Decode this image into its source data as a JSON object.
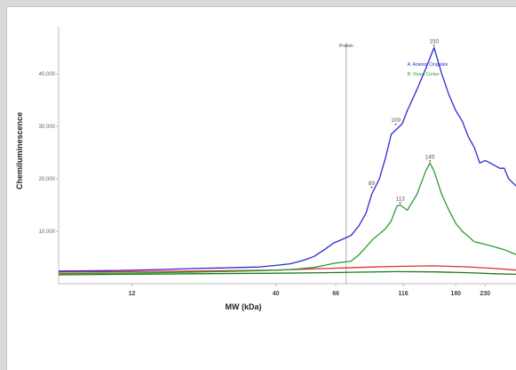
{
  "chart_data": {
    "type": "line",
    "xlabel": "MW (kDa)",
    "ylabel": "Chemiluminescence",
    "x_scale": "log",
    "x_ticks": [
      {
        "value": 12,
        "label": "12"
      },
      {
        "value": 40,
        "label": "40"
      },
      {
        "value": 66,
        "label": "66"
      },
      {
        "value": 116,
        "label": "116"
      },
      {
        "value": 180,
        "label": "180"
      },
      {
        "value": 230,
        "label": "230"
      }
    ],
    "y_ticks": [
      {
        "value": 10000,
        "label": "10,000"
      },
      {
        "value": 20000,
        "label": "20,000"
      },
      {
        "value": 30000,
        "label": "30,000"
      },
      {
        "value": 40000,
        "label": "40,000"
      }
    ],
    "xlim": [
      6.5,
      300
    ],
    "ylim": [
      0,
      49000
    ],
    "reference_line": {
      "x": 72,
      "label": "Protein"
    },
    "series": [
      {
        "name": "Anterior Cingulate",
        "color": "#2a2ad0",
        "points": [
          [
            6.5,
            2400
          ],
          [
            10,
            2500
          ],
          [
            15,
            2700
          ],
          [
            20,
            2900
          ],
          [
            25,
            3000
          ],
          [
            30,
            3100
          ],
          [
            35,
            3200
          ],
          [
            40,
            3500
          ],
          [
            45,
            3800
          ],
          [
            50,
            4400
          ],
          [
            55,
            5200
          ],
          [
            60,
            6500
          ],
          [
            65,
            7800
          ],
          [
            70,
            8500
          ],
          [
            75,
            9200
          ],
          [
            80,
            11000
          ],
          [
            85,
            13500
          ],
          [
            89,
            17000
          ],
          [
            95,
            20000
          ],
          [
            100,
            24000
          ],
          [
            105,
            28500
          ],
          [
            110,
            29500
          ],
          [
            115,
            30500
          ],
          [
            120,
            33000
          ],
          [
            130,
            37000
          ],
          [
            140,
            41000
          ],
          [
            150,
            45000
          ],
          [
            160,
            40000
          ],
          [
            170,
            36000
          ],
          [
            180,
            33000
          ],
          [
            190,
            31000
          ],
          [
            200,
            28000
          ],
          [
            210,
            26000
          ],
          [
            220,
            23000
          ],
          [
            230,
            23500
          ],
          [
            240,
            23000
          ],
          [
            250,
            22500
          ],
          [
            260,
            22000
          ],
          [
            270,
            22000
          ],
          [
            280,
            20000
          ],
          [
            300,
            18500
          ]
        ]
      },
      {
        "name": "Visual Cortex",
        "color": "#2e9a2e",
        "points": [
          [
            6.5,
            1900
          ],
          [
            10,
            2000
          ],
          [
            15,
            2100
          ],
          [
            20,
            2200
          ],
          [
            25,
            2300
          ],
          [
            30,
            2400
          ],
          [
            35,
            2500
          ],
          [
            40,
            2600
          ],
          [
            45,
            2700
          ],
          [
            50,
            2900
          ],
          [
            55,
            3100
          ],
          [
            60,
            3500
          ],
          [
            65,
            3900
          ],
          [
            70,
            4100
          ],
          [
            75,
            4300
          ],
          [
            80,
            5500
          ],
          [
            85,
            7000
          ],
          [
            90,
            8500
          ],
          [
            95,
            9500
          ],
          [
            100,
            10500
          ],
          [
            105,
            12000
          ],
          [
            110,
            14800
          ],
          [
            113,
            15000
          ],
          [
            120,
            14000
          ],
          [
            130,
            17000
          ],
          [
            140,
            21500
          ],
          [
            145,
            23000
          ],
          [
            150,
            21500
          ],
          [
            160,
            17000
          ],
          [
            170,
            14000
          ],
          [
            180,
            11500
          ],
          [
            190,
            10000
          ],
          [
            200,
            9000
          ],
          [
            210,
            8000
          ],
          [
            230,
            7500
          ],
          [
            250,
            7000
          ],
          [
            270,
            6500
          ],
          [
            300,
            5500
          ]
        ]
      },
      {
        "name": "",
        "color": "#e03030",
        "points": [
          [
            6.5,
            2200
          ],
          [
            20,
            2400
          ],
          [
            40,
            2600
          ],
          [
            60,
            2900
          ],
          [
            80,
            3100
          ],
          [
            110,
            3300
          ],
          [
            150,
            3400
          ],
          [
            200,
            3200
          ],
          [
            250,
            2900
          ],
          [
            300,
            2600
          ]
        ]
      },
      {
        "name": "",
        "color": "#1e7a1e",
        "points": [
          [
            6.5,
            1700
          ],
          [
            20,
            1900
          ],
          [
            40,
            2000
          ],
          [
            60,
            2100
          ],
          [
            80,
            2200
          ],
          [
            110,
            2300
          ],
          [
            150,
            2250
          ],
          [
            200,
            2100
          ],
          [
            250,
            1900
          ],
          [
            300,
            1800
          ]
        ]
      }
    ],
    "peak_labels": [
      {
        "x": 150,
        "y": 45000,
        "text": "150"
      },
      {
        "x": 109,
        "y": 30000,
        "text": "109"
      },
      {
        "x": 145,
        "y": 23000,
        "text": "145"
      },
      {
        "x": 89,
        "y": 18000,
        "text": "89"
      },
      {
        "x": 113,
        "y": 15000,
        "text": "113"
      }
    ],
    "legend": {
      "placement": "upper-right",
      "entries": [
        {
          "text": "A: Anterior Cingulate",
          "color": "#2a2ad0"
        },
        {
          "text": "B: Visual Cortex",
          "color": "#2e9a2e"
        }
      ]
    }
  }
}
